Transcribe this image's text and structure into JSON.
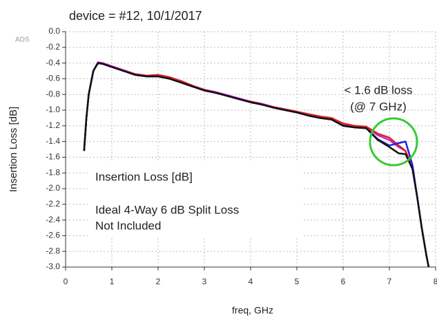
{
  "chart_data": {
    "type": "line",
    "title": "device = #12, 10/1/2017",
    "watermark": "ADS",
    "xlabel": "freq, GHz",
    "ylabel": "Insertion Loss [dB]",
    "annotations": [
      "< 1.6 dB loss",
      "(@ 7 GHz)"
    ],
    "note_lines": [
      "Insertion Loss [dB]",
      "Ideal 4-Way 6 dB Split Loss",
      "Not Included"
    ],
    "xlim": [
      0,
      8
    ],
    "xticks": [
      0,
      1,
      2,
      3,
      4,
      5,
      6,
      7,
      8
    ],
    "ylim": [
      -3,
      0
    ],
    "yticks": [
      {
        "value": 0,
        "label": "0.0"
      },
      -0.2,
      -0.4,
      -0.6,
      -0.8,
      {
        "value": -1,
        "label": "-1.0"
      },
      -1.2,
      -1.4,
      -1.6,
      -1.8,
      {
        "value": -2,
        "label": "-2.0"
      },
      -2.2,
      -2.4,
      -2.6,
      -2.8,
      {
        "value": -3,
        "label": "-3.0"
      }
    ],
    "grid": true,
    "x": [
      0.4,
      0.45,
      0.5,
      0.6,
      0.7,
      0.8,
      1.0,
      1.25,
      1.5,
      1.75,
      2.0,
      2.25,
      2.5,
      2.75,
      3.0,
      3.25,
      3.5,
      3.75,
      4.0,
      4.25,
      4.5,
      4.75,
      5.0,
      5.25,
      5.5,
      5.75,
      6.0,
      6.25,
      6.5,
      6.75,
      7.0,
      7.2,
      7.35,
      7.5,
      7.6,
      7.7,
      7.8,
      7.85
    ],
    "series": [
      {
        "color": "#cc22cc",
        "values": [
          -1.52,
          -1.1,
          -0.8,
          -0.5,
          -0.39,
          -0.4,
          -0.44,
          -0.49,
          -0.54,
          -0.56,
          -0.56,
          -0.59,
          -0.63,
          -0.69,
          -0.74,
          -0.77,
          -0.81,
          -0.85,
          -0.89,
          -0.92,
          -0.96,
          -0.99,
          -1.02,
          -1.06,
          -1.09,
          -1.11,
          -1.18,
          -1.21,
          -1.22,
          -1.32,
          -1.38,
          -1.47,
          -1.52,
          -1.74,
          -2.1,
          -2.5,
          -2.85,
          -3.0
        ]
      },
      {
        "color": "#dd2222",
        "values": [
          -1.52,
          -1.1,
          -0.8,
          -0.5,
          -0.4,
          -0.41,
          -0.45,
          -0.5,
          -0.54,
          -0.56,
          -0.55,
          -0.58,
          -0.63,
          -0.69,
          -0.74,
          -0.78,
          -0.82,
          -0.86,
          -0.89,
          -0.93,
          -0.96,
          -0.99,
          -1.02,
          -1.05,
          -1.08,
          -1.1,
          -1.17,
          -1.2,
          -1.21,
          -1.3,
          -1.35,
          -1.45,
          -1.52,
          -1.75,
          -2.1,
          -2.5,
          -2.85,
          -3.0
        ]
      },
      {
        "color": "#2222dd",
        "values": [
          -1.52,
          -1.1,
          -0.8,
          -0.5,
          -0.4,
          -0.41,
          -0.45,
          -0.5,
          -0.55,
          -0.57,
          -0.57,
          -0.6,
          -0.65,
          -0.7,
          -0.75,
          -0.78,
          -0.82,
          -0.86,
          -0.9,
          -0.93,
          -0.97,
          -1.0,
          -1.03,
          -1.07,
          -1.1,
          -1.12,
          -1.2,
          -1.22,
          -1.23,
          -1.37,
          -1.45,
          -1.42,
          -1.4,
          -1.7,
          -2.1,
          -2.5,
          -2.85,
          -3.0
        ]
      },
      {
        "color": "#111111",
        "values": [
          -1.52,
          -1.1,
          -0.8,
          -0.5,
          -0.4,
          -0.41,
          -0.45,
          -0.5,
          -0.55,
          -0.57,
          -0.57,
          -0.6,
          -0.65,
          -0.7,
          -0.75,
          -0.78,
          -0.82,
          -0.86,
          -0.9,
          -0.93,
          -0.97,
          -1.0,
          -1.03,
          -1.07,
          -1.1,
          -1.12,
          -1.2,
          -1.22,
          -1.23,
          -1.38,
          -1.47,
          -1.55,
          -1.56,
          -1.75,
          -2.1,
          -2.5,
          -2.85,
          -3.0
        ]
      }
    ]
  }
}
